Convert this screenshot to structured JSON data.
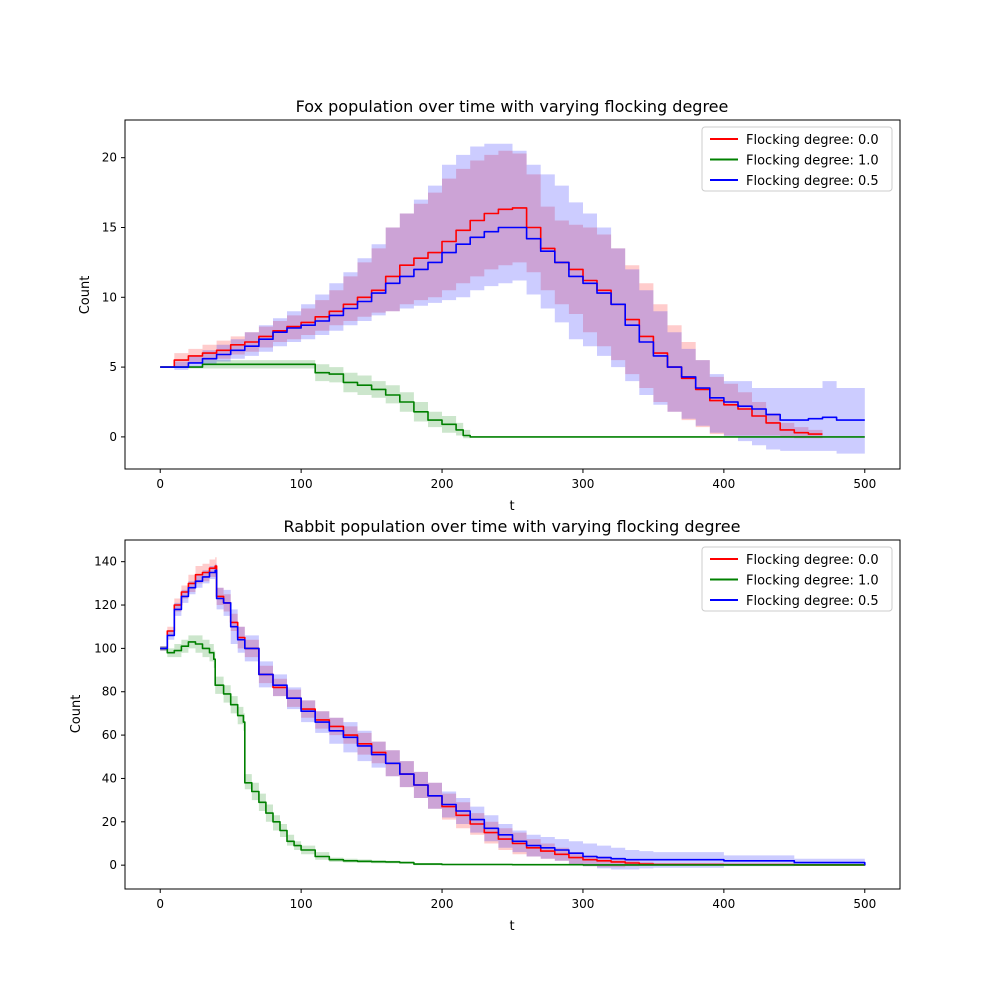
{
  "chart_data": [
    {
      "type": "line",
      "title": "Fox population over time with varying flocking degree",
      "xlabel": "t",
      "ylabel": "Count",
      "xlim": [
        -25,
        525
      ],
      "ylim": [
        -2.3,
        22.7
      ],
      "xticks": [
        0,
        100,
        200,
        300,
        400,
        500
      ],
      "yticks": [
        0,
        5,
        10,
        15,
        20
      ],
      "grid": false,
      "legend": "top-right",
      "series": [
        {
          "name": "Flocking degree: 0.0",
          "color": "#ff0000",
          "x": [
            0,
            10,
            20,
            30,
            40,
            50,
            60,
            70,
            80,
            90,
            100,
            110,
            120,
            130,
            140,
            150,
            160,
            170,
            180,
            190,
            200,
            210,
            220,
            230,
            240,
            250,
            260,
            270,
            280,
            290,
            300,
            310,
            320,
            330,
            340,
            350,
            360,
            370,
            380,
            390,
            400,
            410,
            420,
            430,
            440,
            450,
            460,
            470
          ],
          "y": [
            5,
            5.5,
            5.8,
            6.0,
            6.2,
            6.6,
            6.8,
            7.2,
            7.6,
            7.9,
            8.2,
            8.6,
            9.0,
            9.5,
            10.0,
            10.5,
            11.5,
            12.3,
            12.8,
            13.2,
            14.0,
            14.8,
            15.5,
            16.0,
            16.3,
            16.4,
            15.0,
            13.5,
            12.5,
            12.0,
            11.2,
            10.5,
            9.5,
            8.4,
            7.2,
            6.0,
            5.0,
            4.2,
            3.4,
            2.6,
            2.3,
            2.0,
            1.5,
            1.0,
            0.5,
            0.3,
            0.2,
            0.2
          ],
          "upper": [
            5,
            6.0,
            6.3,
            6.6,
            6.9,
            7.2,
            7.5,
            7.9,
            8.3,
            8.7,
            9.2,
            9.8,
            10.5,
            11.5,
            12.5,
            13.5,
            15.0,
            16.0,
            16.7,
            17.5,
            18.5,
            19.2,
            19.8,
            20.2,
            20.5,
            20.3,
            18.8,
            16.5,
            15.5,
            15.2,
            15.0,
            14.5,
            13.5,
            12.3,
            11.0,
            9.5,
            8.0,
            6.8,
            5.5,
            4.3,
            3.8,
            3.2,
            2.5,
            1.7,
            1.0,
            0.7,
            0.5,
            0.5
          ],
          "lower": [
            5,
            5.0,
            5.3,
            5.5,
            5.6,
            5.9,
            6.1,
            6.4,
            6.8,
            7.0,
            7.3,
            7.6,
            8.0,
            8.3,
            8.6,
            8.9,
            9.0,
            9.5,
            9.8,
            10.0,
            10.5,
            11.0,
            11.5,
            12.0,
            12.3,
            12.5,
            11.8,
            10.5,
            9.5,
            8.8,
            7.5,
            6.5,
            5.5,
            4.5,
            3.5,
            2.5,
            1.8,
            1.2,
            0.7,
            0.2,
            0.1,
            0.1,
            0.1,
            0.1,
            0.0,
            -0.1,
            -0.1,
            -0.1
          ]
        },
        {
          "name": "Flocking degree: 1.0",
          "color": "#008000",
          "x": [
            0,
            20,
            30,
            50,
            70,
            90,
            100,
            110,
            120,
            130,
            140,
            150,
            160,
            170,
            180,
            190,
            200,
            210,
            215,
            220,
            250,
            300,
            350,
            400,
            450,
            500
          ],
          "y": [
            5,
            5,
            5.2,
            5.2,
            5.2,
            5.2,
            5.2,
            4.6,
            4.5,
            3.9,
            3.7,
            3.4,
            3.0,
            2.5,
            1.8,
            1.2,
            0.9,
            0.5,
            0.1,
            0,
            0,
            0,
            0,
            0,
            0,
            0
          ],
          "upper": [
            5,
            5.1,
            5.5,
            5.5,
            5.5,
            5.5,
            5.5,
            5.2,
            5.0,
            4.6,
            4.4,
            4.0,
            3.7,
            3.2,
            2.5,
            1.8,
            1.5,
            1.0,
            0.5,
            0,
            0,
            0,
            0,
            0,
            0,
            0
          ],
          "lower": [
            5,
            4.9,
            4.9,
            4.9,
            4.9,
            4.9,
            4.9,
            4.0,
            3.9,
            3.2,
            3.0,
            2.8,
            2.4,
            1.8,
            1.1,
            0.7,
            0.3,
            0.1,
            -0.1,
            0,
            0,
            0,
            0,
            0,
            0,
            0
          ]
        },
        {
          "name": "Flocking degree: 0.5",
          "color": "#0000ff",
          "x": [
            0,
            10,
            20,
            30,
            40,
            50,
            60,
            70,
            80,
            90,
            100,
            110,
            120,
            130,
            140,
            150,
            160,
            170,
            180,
            190,
            200,
            210,
            220,
            230,
            240,
            250,
            260,
            270,
            280,
            290,
            300,
            310,
            320,
            330,
            340,
            350,
            360,
            370,
            380,
            390,
            400,
            410,
            420,
            430,
            440,
            450,
            460,
            470,
            480,
            490,
            500
          ],
          "y": [
            5,
            5,
            5.3,
            5.6,
            5.9,
            6.2,
            6.5,
            7.0,
            7.5,
            7.8,
            8.0,
            8.3,
            8.7,
            9.2,
            9.7,
            10.3,
            11.0,
            11.5,
            12.0,
            12.5,
            13.2,
            13.8,
            14.3,
            14.7,
            15.0,
            15.0,
            14.2,
            13.3,
            12.5,
            11.5,
            11.0,
            10.3,
            9.5,
            8.0,
            6.8,
            5.8,
            5.0,
            4.3,
            3.5,
            2.8,
            2.5,
            2.2,
            2.0,
            1.6,
            1.2,
            1.2,
            1.3,
            1.4,
            1.2,
            1.2,
            1.2
          ],
          "upper": [
            5,
            5.4,
            5.8,
            6.2,
            6.6,
            7.0,
            7.5,
            8.0,
            8.5,
            9.0,
            9.5,
            10.2,
            11.0,
            11.8,
            12.8,
            13.8,
            15.0,
            16.0,
            17.0,
            18.0,
            19.5,
            20.2,
            20.8,
            21.0,
            21.0,
            20.5,
            19.5,
            18.8,
            18.0,
            16.8,
            16.0,
            15.0,
            13.5,
            12.0,
            10.5,
            9.0,
            7.5,
            6.3,
            5.5,
            4.5,
            4.0,
            4.0,
            3.5,
            3.5,
            3.5,
            3.5,
            3.5,
            4.0,
            3.5,
            3.5,
            3.5
          ],
          "lower": [
            5,
            4.8,
            5.0,
            5.2,
            5.4,
            5.6,
            5.8,
            6.1,
            6.5,
            6.8,
            7.0,
            7.3,
            7.6,
            8.0,
            8.3,
            8.7,
            9.0,
            9.2,
            9.4,
            9.6,
            9.8,
            10.0,
            10.5,
            10.8,
            11.0,
            11.2,
            10.2,
            9.2,
            8.2,
            7.0,
            6.5,
            5.8,
            5.0,
            4.0,
            3.0,
            2.3,
            1.8,
            1.3,
            0.8,
            0.3,
            0.0,
            -0.3,
            -0.6,
            -0.9,
            -1.0,
            -1.0,
            -1.0,
            -1.0,
            -1.2,
            -1.2,
            -1.2
          ]
        }
      ]
    },
    {
      "type": "line",
      "title": "Rabbit population over time with varying flocking degree",
      "xlabel": "t",
      "ylabel": "Count",
      "xlim": [
        -25,
        525
      ],
      "ylim": [
        -11,
        150
      ],
      "xticks": [
        0,
        100,
        200,
        300,
        400,
        500
      ],
      "yticks": [
        0,
        20,
        40,
        60,
        80,
        100,
        120,
        140
      ],
      "grid": false,
      "legend": "top-right",
      "series": [
        {
          "name": "Flocking degree: 0.0",
          "color": "#ff0000",
          "x": [
            0,
            5,
            10,
            15,
            20,
            25,
            30,
            35,
            39,
            40,
            45,
            50,
            55,
            60,
            70,
            80,
            90,
            100,
            110,
            120,
            130,
            140,
            150,
            160,
            170,
            180,
            190,
            200,
            210,
            220,
            230,
            240,
            250,
            260,
            270,
            280,
            290,
            300,
            310,
            320,
            330,
            340,
            350,
            400,
            450,
            500
          ],
          "y": [
            100,
            108,
            120,
            126,
            130,
            134,
            135,
            137,
            138,
            124,
            121,
            112,
            105,
            100,
            88,
            82,
            77,
            72,
            67,
            64,
            60,
            56,
            52,
            47,
            42,
            37,
            32,
            27,
            23,
            19,
            15,
            12,
            10,
            8,
            6.5,
            5,
            3.5,
            2.5,
            2,
            1.5,
            1,
            0.5,
            0.3,
            0.2,
            0.1,
            0
          ],
          "upper": [
            101,
            110,
            123,
            129,
            134,
            138,
            139,
            141,
            142,
            128,
            125,
            116,
            110,
            104,
            92,
            86,
            81,
            76,
            71,
            68,
            64,
            61,
            57,
            53,
            48,
            43,
            38,
            33,
            29,
            24,
            20,
            17,
            15,
            12,
            10,
            8,
            6,
            4.5,
            4,
            3,
            2,
            1.5,
            1,
            0.8,
            0.5,
            0.2
          ],
          "lower": [
            99,
            106,
            117,
            123,
            126,
            130,
            131,
            133,
            134,
            120,
            117,
            108,
            100,
            96,
            84,
            78,
            73,
            68,
            63,
            60,
            56,
            51,
            47,
            41,
            36,
            31,
            26,
            21,
            17,
            14,
            10,
            7,
            5,
            4,
            3,
            2,
            0.5,
            -0.5,
            -1,
            -1,
            -0.5,
            -0.3,
            -0.2,
            -0.2,
            -0.1,
            -0.1
          ]
        },
        {
          "name": "Flocking degree: 1.0",
          "color": "#008000",
          "x": [
            0,
            5,
            10,
            15,
            20,
            25,
            30,
            35,
            38,
            39,
            45,
            50,
            55,
            59,
            60,
            65,
            70,
            75,
            80,
            85,
            90,
            95,
            100,
            110,
            120,
            130,
            140,
            150,
            160,
            170,
            180,
            200,
            250,
            300,
            350,
            400,
            450,
            500
          ],
          "y": [
            100,
            98,
            99,
            101,
            103,
            102,
            100,
            98,
            95,
            83,
            79,
            74,
            69,
            66,
            38,
            34,
            29,
            24,
            20,
            16,
            11,
            9,
            7,
            4,
            2.5,
            2,
            1.8,
            1.6,
            1.5,
            1.2,
            0.5,
            0.3,
            0.2,
            0.1,
            0.1,
            0.1,
            0.1,
            0
          ],
          "upper": [
            101,
            100,
            102,
            104,
            106,
            106,
            104,
            102,
            99,
            87,
            83,
            78,
            73,
            70,
            42,
            38,
            33,
            28,
            23,
            19,
            14,
            11,
            9,
            6,
            3.5,
            3,
            2.6,
            2.3,
            2.0,
            1.6,
            1.0,
            0.7,
            0.5,
            0.4,
            0.4,
            0.4,
            0.3,
            0.2
          ],
          "lower": [
            99,
            96,
            96,
            98,
            100,
            98,
            96,
            94,
            91,
            79,
            75,
            70,
            65,
            62,
            35,
            30,
            25,
            20,
            16,
            13,
            9,
            7,
            5,
            2.5,
            1.5,
            1.2,
            1.0,
            0.9,
            0.8,
            0.6,
            0.0,
            -0.1,
            -0.1,
            -0.2,
            -0.2,
            -0.2,
            -0.2,
            -0.2
          ]
        },
        {
          "name": "Flocking degree: 0.5",
          "color": "#0000ff",
          "x": [
            0,
            5,
            10,
            15,
            20,
            25,
            30,
            35,
            39,
            40,
            45,
            50,
            55,
            60,
            70,
            80,
            90,
            100,
            110,
            120,
            130,
            140,
            150,
            160,
            170,
            180,
            190,
            200,
            210,
            220,
            230,
            240,
            250,
            260,
            270,
            280,
            290,
            300,
            310,
            320,
            330,
            340,
            350,
            400,
            450,
            500
          ],
          "y": [
            100,
            106,
            118,
            124,
            128,
            131,
            133,
            135,
            136,
            123,
            121,
            110,
            104,
            100,
            88,
            83,
            77,
            71,
            66,
            62,
            59,
            55,
            51,
            47,
            42,
            37,
            32,
            28,
            25,
            21,
            17,
            14,
            11,
            9,
            8,
            7,
            5.5,
            4,
            3.5,
            3,
            2.5,
            2.5,
            2.5,
            2,
            1.2,
            0
          ],
          "upper": [
            101,
            108,
            121,
            127,
            131,
            134,
            136,
            138,
            139,
            128,
            127,
            118,
            110,
            106,
            94,
            88,
            82,
            76,
            71,
            68,
            66,
            62,
            57,
            53,
            48,
            43,
            38,
            34,
            31,
            27,
            23,
            19,
            16,
            14,
            13,
            12,
            11,
            10,
            9,
            8,
            7,
            6.5,
            6,
            4.5,
            3,
            1
          ],
          "lower": [
            99,
            104,
            115,
            121,
            125,
            128,
            130,
            132,
            133,
            118,
            115,
            102,
            98,
            94,
            82,
            78,
            72,
            66,
            61,
            56,
            52,
            48,
            45,
            41,
            36,
            31,
            26,
            22,
            19,
            15,
            11,
            8,
            6,
            4,
            3,
            2,
            0.5,
            -0.5,
            -1.5,
            -2,
            -2,
            -1.5,
            -1.2,
            -0.5,
            -0.2,
            0
          ]
        }
      ]
    }
  ]
}
